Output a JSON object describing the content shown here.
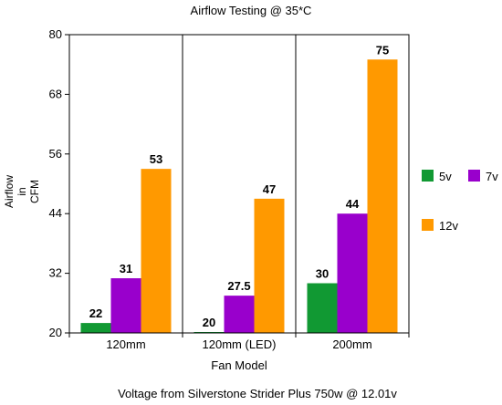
{
  "chart_data": {
    "type": "bar",
    "title": "Airflow Testing @ 35*C",
    "xlabel": "Fan Model",
    "ylabel_lines": [
      "Airflow",
      "in",
      "CFM"
    ],
    "footnote": "Voltage from Silverstone Strider Plus 750w @ 12.01v",
    "categories": [
      "120mm",
      "120mm (LED)",
      "200mm"
    ],
    "ylim": [
      20,
      80
    ],
    "yticks": [
      20,
      32,
      44,
      56,
      68,
      80
    ],
    "grid": false,
    "legend_position": "right",
    "series": [
      {
        "name": "5v",
        "color": "#119933",
        "values": [
          22,
          20,
          30
        ],
        "labels": [
          "22",
          "20",
          "30"
        ]
      },
      {
        "name": "7v",
        "color": "#9900cc",
        "values": [
          31,
          27.5,
          44
        ],
        "labels": [
          "31",
          "27.5",
          "44"
        ]
      },
      {
        "name": "12v",
        "color": "#ff9900",
        "values": [
          53,
          47,
          75
        ],
        "labels": [
          "53",
          "47",
          "75"
        ]
      }
    ]
  }
}
